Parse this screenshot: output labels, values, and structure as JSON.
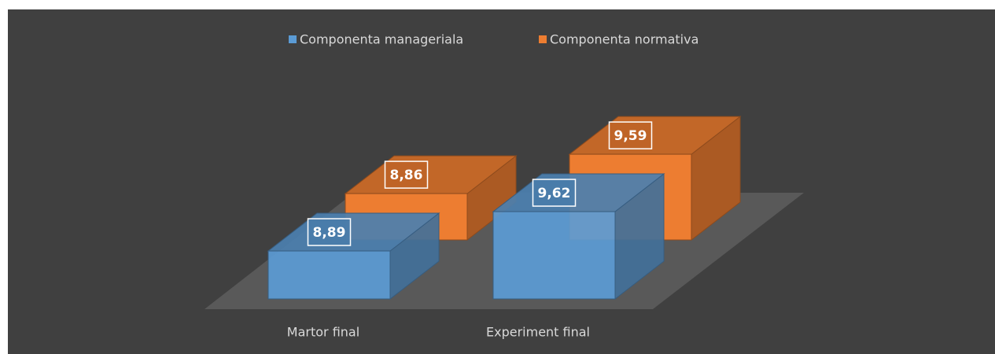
{
  "chart_data": {
    "type": "bar3d",
    "categories": [
      "Martor final",
      "Experiment final"
    ],
    "series": [
      {
        "name": "Componenta manageriala",
        "color": "#5b9bd5",
        "values": [
          8.89,
          9.62
        ],
        "value_labels": [
          "8,89",
          "9,62"
        ]
      },
      {
        "name": "Componenta normativa",
        "color": "#ed7d31",
        "values": [
          8.86,
          9.59
        ],
        "value_labels": [
          "8,86",
          "9,59"
        ]
      }
    ],
    "ylim": [
      8,
      10
    ]
  }
}
